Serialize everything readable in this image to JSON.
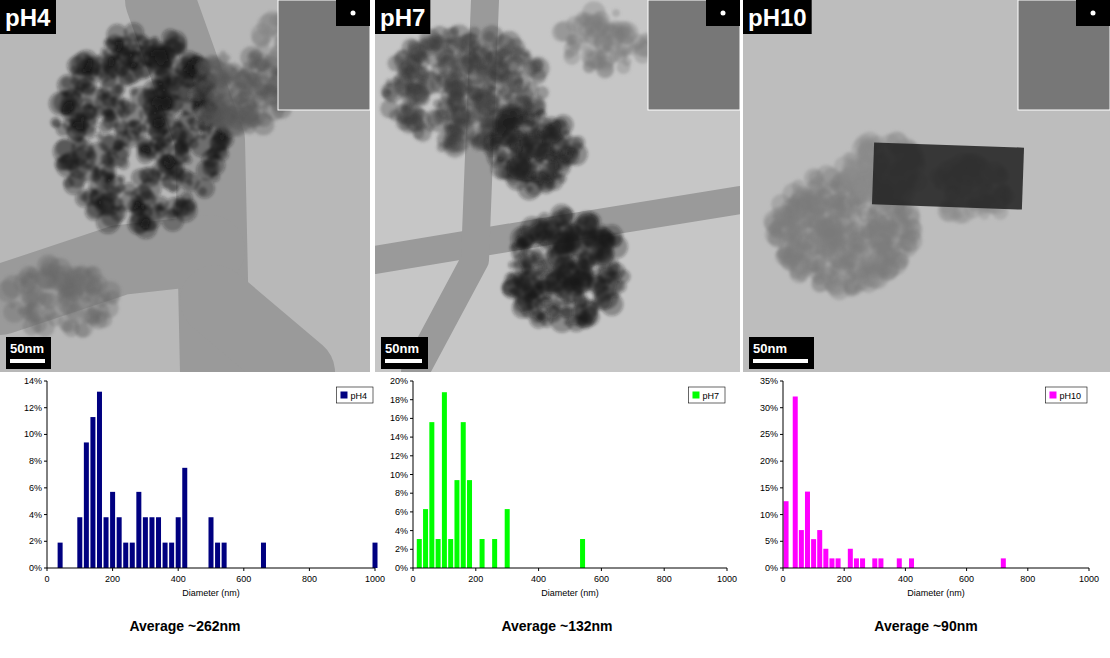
{
  "chart_data": [
    {
      "type": "bar",
      "title": "pH4",
      "subtitle": "Average ~262nm",
      "annotations": [
        "50nm"
      ],
      "x_label": "Diameter (nm)",
      "x": [
        40,
        100,
        120,
        140,
        160,
        180,
        200,
        220,
        240,
        260,
        280,
        300,
        320,
        340,
        360,
        380,
        400,
        420,
        500,
        520,
        540,
        660,
        1000
      ],
      "series": [
        {
          "name": "pH4",
          "color": "#000080",
          "values": [
            1.9,
            3.8,
            9.4,
            11.3,
            13.2,
            3.8,
            5.7,
            3.8,
            1.9,
            1.9,
            5.7,
            3.8,
            3.8,
            3.8,
            1.9,
            1.9,
            3.8,
            7.5,
            3.8,
            1.9,
            1.9,
            1.9,
            1.9
          ]
        }
      ],
      "xlim": [
        0,
        1000
      ],
      "xticks": [
        0,
        200,
        400,
        600,
        800,
        1000
      ],
      "ylim": [
        0,
        14
      ],
      "yticks": [
        {
          "value": 0,
          "label": "0%"
        },
        {
          "value": 2,
          "label": "2%"
        },
        {
          "value": 4,
          "label": "4%"
        },
        {
          "value": 6,
          "label": "6%"
        },
        {
          "value": 8,
          "label": "8%"
        },
        {
          "value": 10,
          "label": "10%"
        },
        {
          "value": 12,
          "label": "12%"
        },
        {
          "value": 14,
          "label": "14%"
        }
      ],
      "legend": "upper right"
    },
    {
      "type": "bar",
      "title": "pH7",
      "subtitle": "Average ~132nm",
      "annotations": [
        "50nm"
      ],
      "x_label": "Diameter (nm)",
      "x": [
        20,
        40,
        60,
        80,
        100,
        120,
        140,
        160,
        180,
        220,
        260,
        300,
        540
      ],
      "series": [
        {
          "name": "pH7",
          "color": "#00ff00",
          "values": [
            3.1,
            6.3,
            15.6,
            3.1,
            18.8,
            3.1,
            9.4,
            15.6,
            9.4,
            3.1,
            3.1,
            6.3,
            3.1
          ]
        }
      ],
      "xlim": [
        0,
        1000
      ],
      "xticks": [
        0,
        200,
        400,
        600,
        800,
        1000
      ],
      "ylim": [
        0,
        20
      ],
      "yticks": [
        {
          "value": 0,
          "label": "0%"
        },
        {
          "value": 2,
          "label": "2%"
        },
        {
          "value": 4,
          "label": "4%"
        },
        {
          "value": 6,
          "label": "6%"
        },
        {
          "value": 8,
          "label": "8%"
        },
        {
          "value": 10,
          "label": "10%"
        },
        {
          "value": 12,
          "label": "12%"
        },
        {
          "value": 14,
          "label": "14%"
        },
        {
          "value": 16,
          "label": "16%"
        },
        {
          "value": 18,
          "label": "18%"
        },
        {
          "value": 20,
          "label": "20%"
        }
      ],
      "legend": "upper right"
    },
    {
      "type": "bar",
      "title": "pH10",
      "subtitle": "Average ~90nm",
      "annotations": [
        "50nm"
      ],
      "x_label": "Diameter (nm)",
      "x": [
        10,
        40,
        60,
        80,
        100,
        120,
        140,
        160,
        180,
        220,
        240,
        260,
        300,
        320,
        380,
        420,
        720
      ],
      "series": [
        {
          "name": "pH10",
          "color": "#ff00ff",
          "values": [
            12.5,
            32.1,
            7.1,
            14.3,
            5.4,
            7.1,
            3.6,
            1.8,
            1.8,
            3.6,
            1.8,
            1.8,
            1.8,
            1.8,
            1.8,
            1.8,
            1.8
          ]
        }
      ],
      "xlim": [
        0,
        1000
      ],
      "xticks": [
        0,
        200,
        400,
        600,
        800,
        1000
      ],
      "ylim": [
        0,
        35
      ],
      "yticks": [
        {
          "value": 0,
          "label": "0%"
        },
        {
          "value": 5,
          "label": "5%"
        },
        {
          "value": 10,
          "label": "10%"
        },
        {
          "value": 15,
          "label": "15%"
        },
        {
          "value": 20,
          "label": "20%"
        },
        {
          "value": 25,
          "label": "25%"
        },
        {
          "value": 30,
          "label": "30%"
        },
        {
          "value": 35,
          "label": "35%"
        }
      ],
      "legend": "upper right"
    }
  ]
}
